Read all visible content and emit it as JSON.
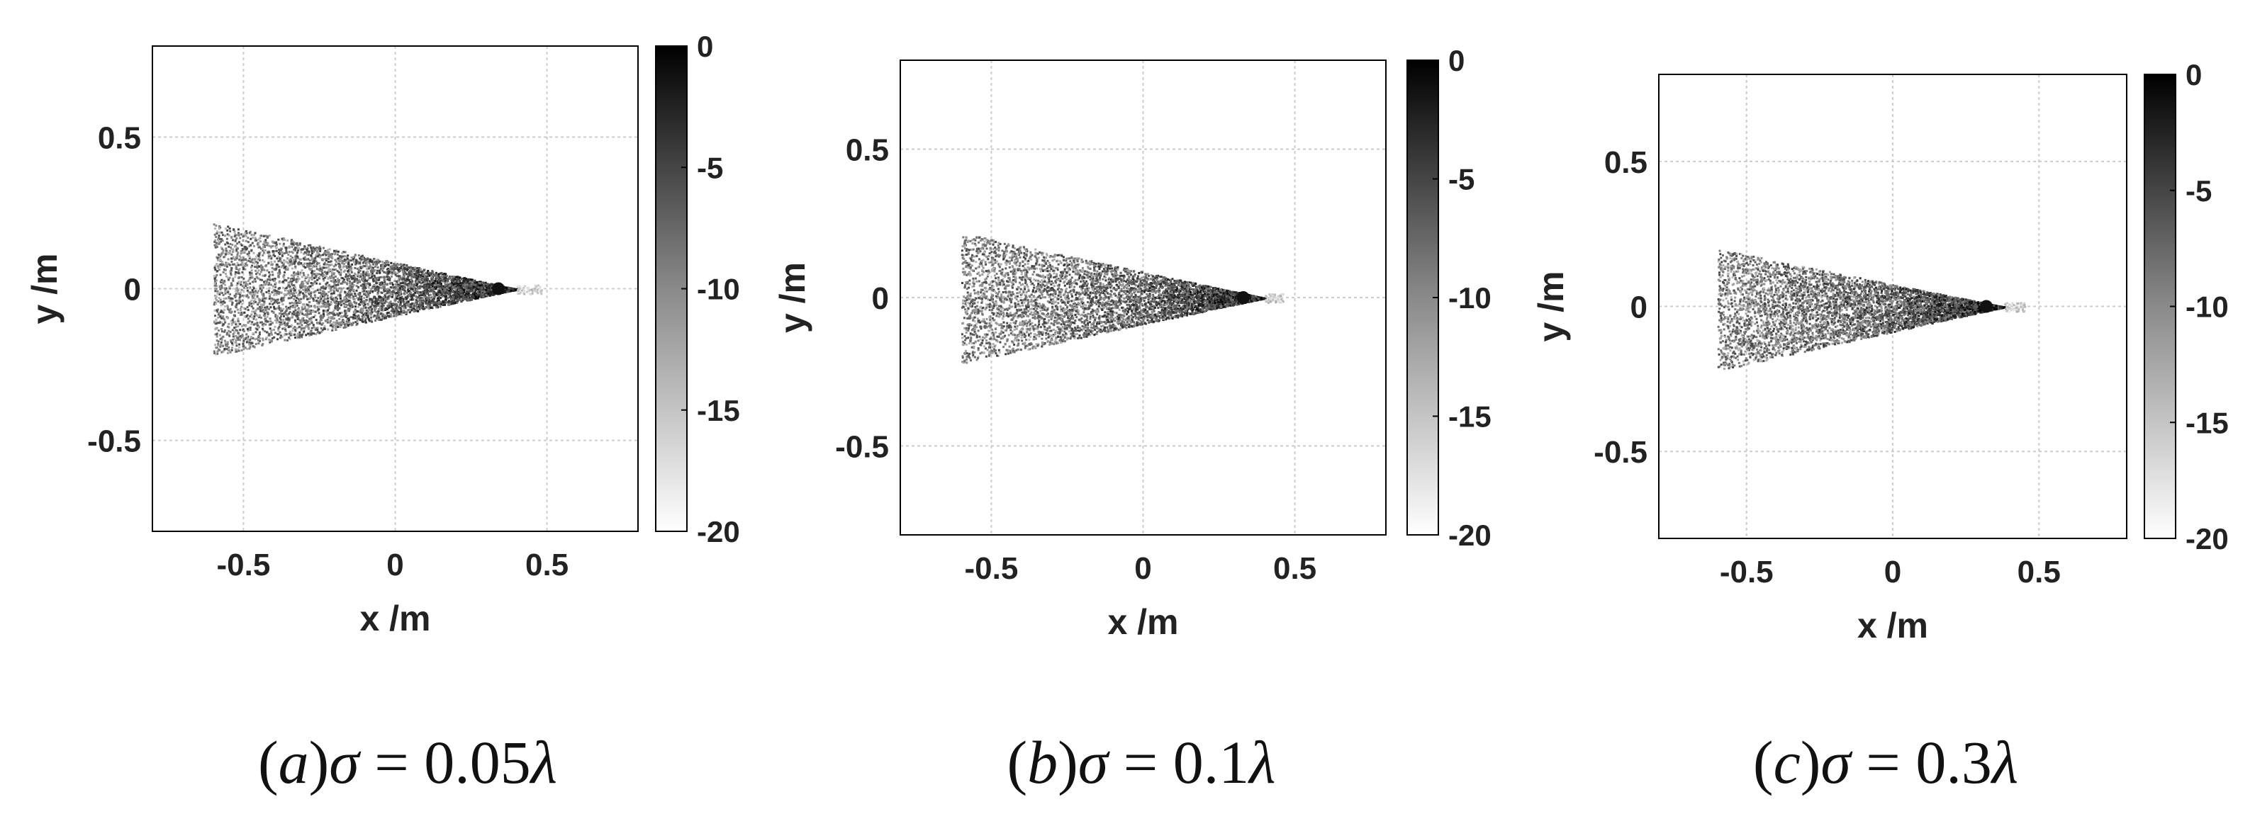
{
  "chart_data": [
    {
      "type": "heatmap",
      "caption": "(a)σ = 0.05λ",
      "caption_parts": {
        "open": "(",
        "letter": "a",
        "close": ")",
        "symbol": "σ",
        "equals": " = ",
        "value": "0.05",
        "unit": "λ"
      },
      "xlabel": "x /m",
      "ylabel": "y /m",
      "xlim": [
        -0.8,
        0.8
      ],
      "ylim": [
        -0.8,
        0.8
      ],
      "xticks": [
        -0.5,
        0,
        0.5
      ],
      "yticks": [
        0.5,
        0,
        -0.5
      ],
      "xtick_labels": [
        "-0.5",
        "0",
        "0.5"
      ],
      "ytick_labels": [
        "0.5",
        "0",
        "-0.5"
      ],
      "grid": true,
      "colorbar": {
        "range": [
          -20,
          0
        ],
        "ticks": [
          0,
          -5,
          -10,
          -15,
          -20
        ],
        "tick_labels": [
          "0",
          "-5",
          "-10",
          "-15",
          "-20"
        ],
        "colormap": "gray-reversed"
      },
      "region": {
        "shape": "wedge",
        "apex": [
          0.4,
          0
        ],
        "base_x": -0.6,
        "base_y_top": 0.22,
        "base_y_bottom": -0.22,
        "tail_to_x": 0.48,
        "peak_at": [
          0.34,
          0
        ]
      },
      "colors": {
        "axis": "#000000",
        "grid": "#cccccc",
        "dark": "#000000",
        "light": "#ffffff"
      }
    },
    {
      "type": "heatmap",
      "caption": "(b)σ = 0.1λ",
      "caption_parts": {
        "open": "(",
        "letter": "b",
        "close": ")",
        "symbol": "σ",
        "equals": " = ",
        "value": "0.1",
        "unit": "λ"
      },
      "xlabel": "x /m",
      "ylabel": "y /m",
      "xlim": [
        -0.8,
        0.8
      ],
      "ylim": [
        -0.8,
        0.8
      ],
      "xticks": [
        -0.5,
        0,
        0.5
      ],
      "yticks": [
        0.5,
        0,
        -0.5
      ],
      "xtick_labels": [
        "-0.5",
        "0",
        "0.5"
      ],
      "ytick_labels": [
        "0.5",
        "0",
        "-0.5"
      ],
      "grid": true,
      "colorbar": {
        "range": [
          -20,
          0
        ],
        "ticks": [
          0,
          -5,
          -10,
          -15,
          -20
        ],
        "tick_labels": [
          "0",
          "-5",
          "-10",
          "-15",
          "-20"
        ],
        "colormap": "gray-reversed"
      },
      "region": {
        "shape": "wedge",
        "apex": [
          0.4,
          0
        ],
        "base_x": -0.6,
        "base_y_top": 0.22,
        "base_y_bottom": -0.22,
        "tail_to_x": 0.46,
        "peak_at": [
          0.33,
          0
        ]
      },
      "colors": {
        "axis": "#000000",
        "grid": "#cccccc",
        "dark": "#000000",
        "light": "#ffffff"
      }
    },
    {
      "type": "heatmap",
      "caption": "(c)σ = 0.3λ",
      "caption_parts": {
        "open": "(",
        "letter": "c",
        "close": ")",
        "symbol": "σ",
        "equals": " = ",
        "value": "0.3",
        "unit": "λ"
      },
      "xlabel": "x /m",
      "ylabel": "y /m",
      "xlim": [
        -0.8,
        0.8
      ],
      "ylim": [
        -0.8,
        0.8
      ],
      "xticks": [
        -0.5,
        0,
        0.5
      ],
      "yticks": [
        0.5,
        0,
        -0.5
      ],
      "xtick_labels": [
        "-0.5",
        "0",
        "0.5"
      ],
      "ytick_labels": [
        "0.5",
        "0",
        "-0.5"
      ],
      "grid": true,
      "colorbar": {
        "range": [
          -20,
          0
        ],
        "ticks": [
          0,
          -5,
          -10,
          -15,
          -20
        ],
        "tick_labels": [
          "0",
          "-5",
          "-10",
          "-15",
          "-20"
        ],
        "colormap": "gray-reversed"
      },
      "region": {
        "shape": "wedge",
        "apex": [
          0.38,
          0
        ],
        "base_x": -0.6,
        "base_y_top": 0.2,
        "base_y_bottom": -0.22,
        "tail_to_x": 0.45,
        "peak_at": [
          0.32,
          0
        ]
      },
      "colors": {
        "axis": "#000000",
        "grid": "#cccccc",
        "dark": "#000000",
        "light": "#ffffff"
      }
    }
  ]
}
